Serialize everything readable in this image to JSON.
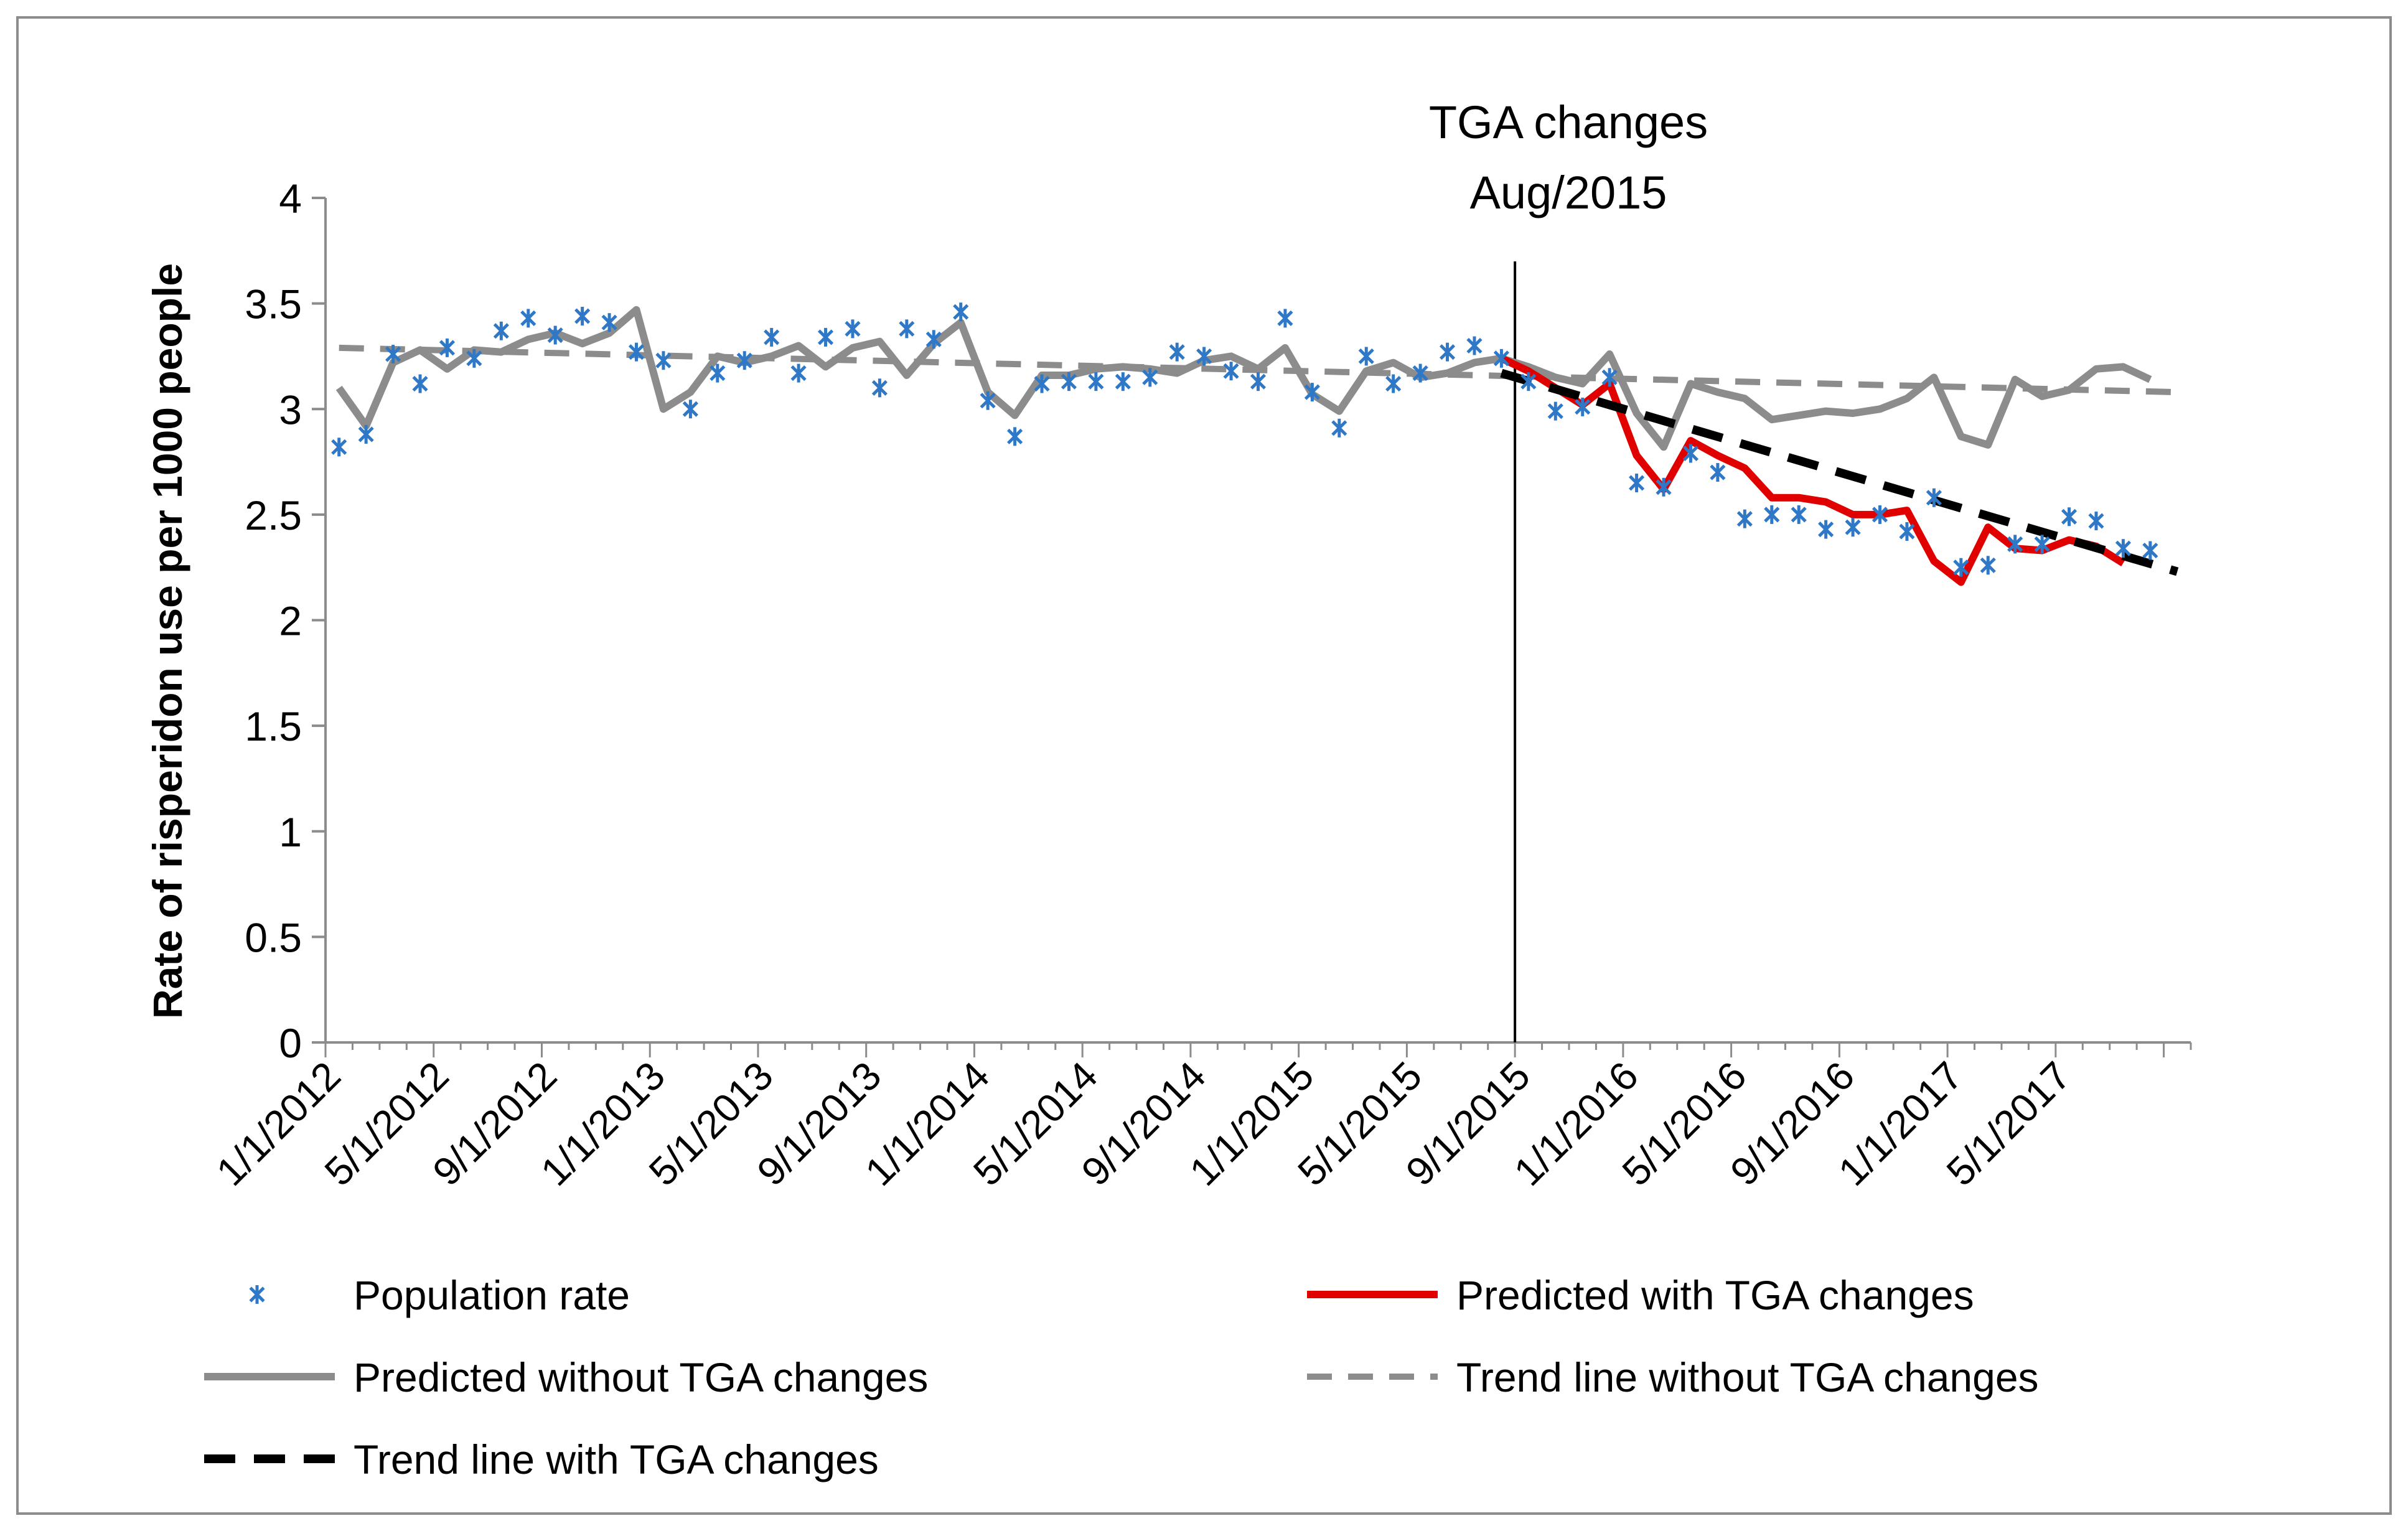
{
  "chart_data": {
    "type": "line",
    "title": "",
    "xlabel": "",
    "ylabel": "Rate of risperidon use per 1000 people",
    "ylim": [
      0,
      4
    ],
    "yticks": [
      "0",
      "0.5",
      "1",
      "1.5",
      "2",
      "2.5",
      "3",
      "3.5",
      "4"
    ],
    "xticks": [
      "1/1/2012",
      "5/1/2012",
      "9/1/2012",
      "1/1/2013",
      "5/1/2013",
      "9/1/2013",
      "1/1/2014",
      "5/1/2014",
      "9/1/2014",
      "1/1/2015",
      "5/1/2015",
      "9/1/2015",
      "1/1/2016",
      "5/1/2016",
      "9/1/2016",
      "1/1/2017",
      "5/1/2017"
    ],
    "xtick_month_index": [
      0,
      4,
      8,
      12,
      16,
      20,
      24,
      28,
      32,
      36,
      40,
      44,
      48,
      52,
      56,
      60,
      64
    ],
    "n_months": 69,
    "intervention": {
      "label_line1": "TGA changes",
      "label_line2": "Aug/2015",
      "month_index": 43.5
    },
    "grid": false,
    "legend_position": "bottom",
    "series": [
      {
        "name": "Population rate",
        "kind": "markers",
        "color": "#2e78c7",
        "start_index": 0,
        "values": [
          2.82,
          2.88,
          3.26,
          3.12,
          3.29,
          3.24,
          3.37,
          3.43,
          3.35,
          3.44,
          3.41,
          3.27,
          3.23,
          3.0,
          3.17,
          3.23,
          3.34,
          3.17,
          3.34,
          3.38,
          3.1,
          3.38,
          3.33,
          3.46,
          3.04,
          2.87,
          3.12,
          3.13,
          3.13,
          3.13,
          3.15,
          3.27,
          3.25,
          3.18,
          3.13,
          3.43,
          3.08,
          2.91,
          3.25,
          3.12,
          3.17,
          3.27,
          3.3,
          3.24,
          3.13,
          2.99,
          3.01,
          3.15,
          2.65,
          2.63,
          2.79,
          2.7,
          2.48,
          2.5,
          2.5,
          2.43,
          2.44,
          2.5,
          2.42,
          2.58,
          2.25,
          2.26,
          2.36,
          2.36,
          2.49,
          2.47,
          2.34,
          2.33
        ]
      },
      {
        "name": "Predicted with TGA changes",
        "kind": "line",
        "color": "#e00000",
        "start_index": 43,
        "values": [
          3.24,
          3.18,
          3.1,
          3.02,
          3.12,
          2.78,
          2.62,
          2.85,
          2.78,
          2.72,
          2.58,
          2.58,
          2.56,
          2.5,
          2.5,
          2.52,
          2.28,
          2.18,
          2.44,
          2.34,
          2.33,
          2.38,
          2.35,
          2.27
        ]
      },
      {
        "name": "Predicted without TGA changes",
        "kind": "line",
        "color": "#8c8c8c",
        "start_index": 0,
        "values": [
          3.1,
          2.92,
          3.22,
          3.28,
          3.19,
          3.28,
          3.27,
          3.33,
          3.36,
          3.31,
          3.36,
          3.47,
          3.0,
          3.08,
          3.25,
          3.22,
          3.25,
          3.3,
          3.2,
          3.29,
          3.32,
          3.16,
          3.31,
          3.41,
          3.08,
          2.97,
          3.16,
          3.16,
          3.19,
          3.2,
          3.19,
          3.17,
          3.23,
          3.25,
          3.19,
          3.29,
          3.07,
          2.99,
          3.18,
          3.22,
          3.15,
          3.17,
          3.22,
          3.24,
          3.2,
          3.15,
          3.12,
          3.26,
          2.98,
          2.82,
          3.12,
          3.08,
          3.05,
          2.95,
          2.97,
          2.99,
          2.98,
          3.0,
          3.05,
          3.15,
          2.87,
          2.83,
          3.14,
          3.06,
          3.09,
          3.19,
          3.2,
          3.14
        ]
      },
      {
        "name": "Trend line without TGA changes",
        "kind": "dashed",
        "color": "#8c8c8c",
        "start_index": 0,
        "values": [
          3.29,
          3.08
        ]
      },
      {
        "name": "Trend line with TGA changes",
        "kind": "dashed",
        "color": "#000000",
        "start_index": 43,
        "values": [
          3.17,
          2.23
        ]
      }
    ]
  }
}
